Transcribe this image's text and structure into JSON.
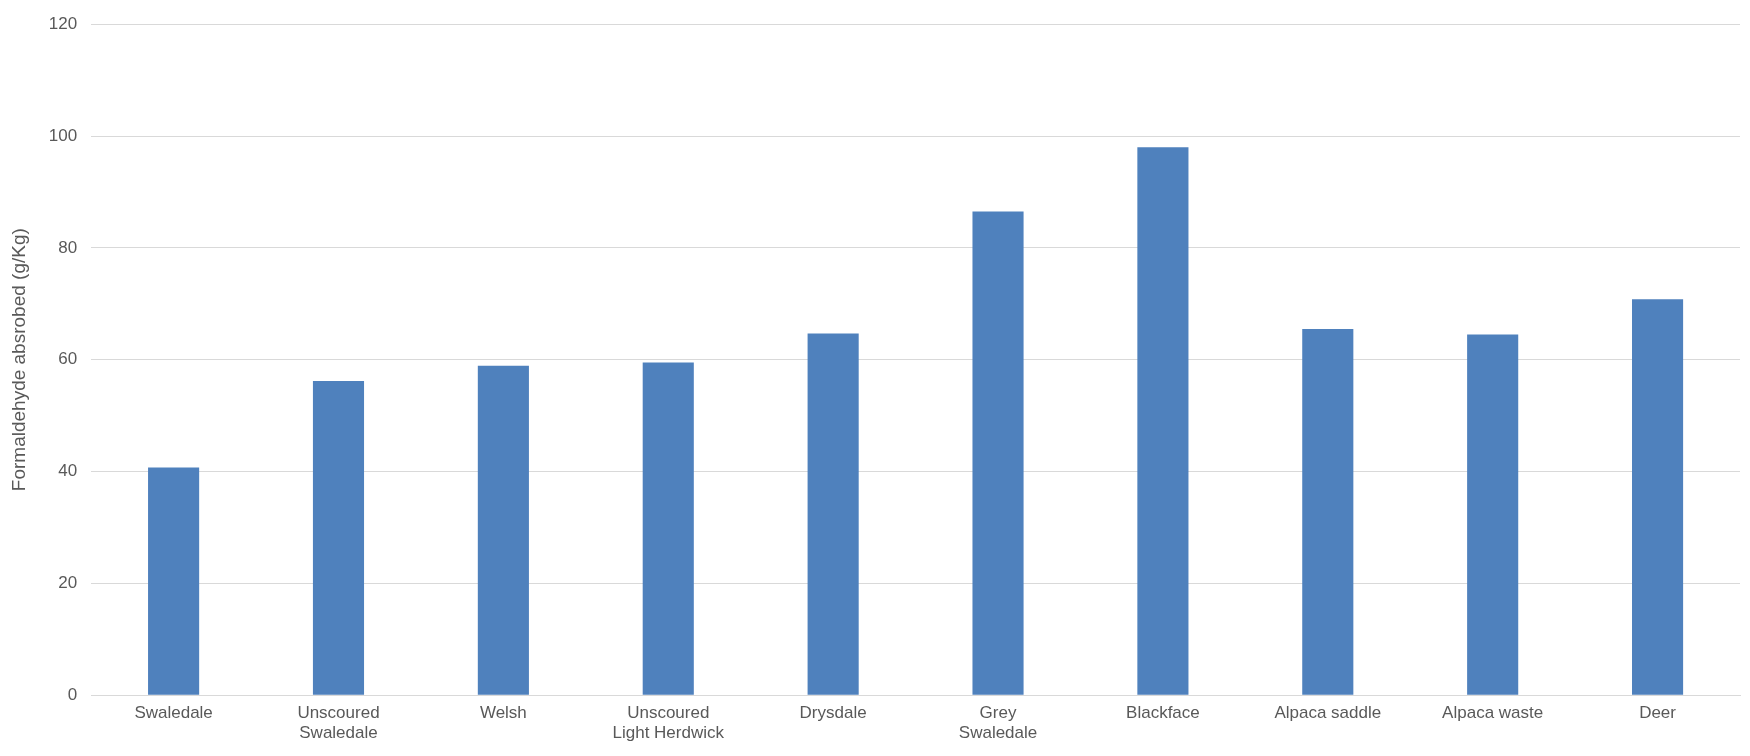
{
  "chart_data": {
    "type": "bar",
    "ylabel": "Formaldehyde absrobed (g/Kg)",
    "categories": [
      "Swaledale",
      "Unscoured Swaledale",
      "Welsh",
      "Unscoured Light Herdwick",
      "Drysdale",
      "Grey Swaledale",
      "Blackface",
      "Alpaca saddle",
      "Alpaca waste",
      "Deer"
    ],
    "values": [
      40.7,
      56.2,
      58.9,
      59.5,
      64.7,
      86.5,
      98.0,
      65.5,
      64.5,
      70.8
    ],
    "color": "#4f81bd",
    "ylim": [
      0,
      120
    ],
    "yticks": [
      0,
      20,
      40,
      60,
      80,
      100,
      120
    ],
    "grid": "y"
  }
}
